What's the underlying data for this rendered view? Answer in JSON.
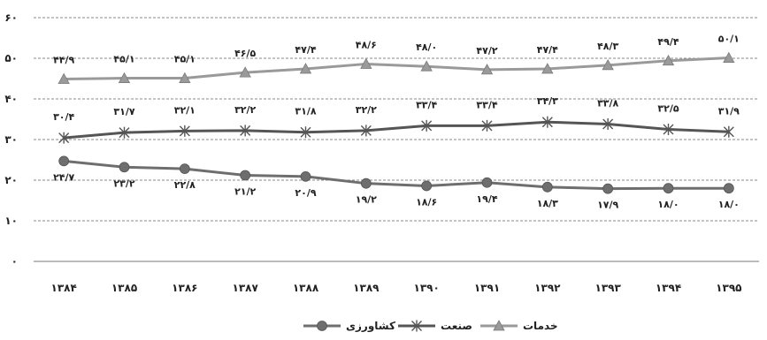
{
  "chart_data": {
    "type": "line",
    "categories": [
      "۱۳۸۴",
      "۱۳۸۵",
      "۱۳۸۶",
      "۱۳۸۷",
      "۱۳۸۸",
      "۱۳۸۹",
      "۱۳۹۰",
      "۱۳۹۱",
      "۱۳۹۲",
      "۱۳۹۳",
      "۱۳۹۴",
      "۱۳۹۵"
    ],
    "ylim": [
      0,
      60
    ],
    "yticks": [
      0,
      10,
      20,
      30,
      40,
      50,
      60
    ],
    "ytick_labels": [
      "۰",
      "۱۰",
      "۲۰",
      "۳۰",
      "۴۰",
      "۵۰",
      "۶۰"
    ],
    "grid": true,
    "legend_position": "bottom",
    "series": [
      {
        "name": "خدمات",
        "marker": "triangle",
        "color": "#9a9a9a",
        "values": [
          44.9,
          45.1,
          45.1,
          46.5,
          47.4,
          48.6,
          48.0,
          47.2,
          47.4,
          48.3,
          49.4,
          50.1
        ],
        "labels": [
          "۴۴/۹",
          "۴۵/۱",
          "۴۵/۱",
          "۴۶/۵",
          "۴۷/۴",
          "۴۸/۶",
          "۴۸/۰",
          "۴۷/۲",
          "۴۷/۴",
          "۴۸/۳",
          "۴۹/۴",
          "۵۰/۱"
        ]
      },
      {
        "name": "صنعت",
        "marker": "asterisk",
        "color": "#555555",
        "values": [
          30.4,
          31.7,
          32.1,
          32.2,
          31.8,
          32.2,
          33.4,
          33.4,
          34.3,
          33.8,
          32.5,
          31.9
        ],
        "labels": [
          "۳۰/۴",
          "۳۱/۷",
          "۳۲/۱",
          "۳۲/۲",
          "۳۱/۸",
          "۳۲/۲",
          "۳۳/۴",
          "۳۳/۴",
          "۳۴/۳",
          "۳۳/۸",
          "۳۲/۵",
          "۳۱/۹"
        ]
      },
      {
        "name": "کشاورزی",
        "marker": "circle",
        "color": "#6e6e6e",
        "values": [
          24.7,
          23.2,
          22.8,
          21.2,
          20.9,
          19.2,
          18.6,
          19.4,
          18.3,
          17.9,
          18.0,
          18.0
        ],
        "labels": [
          "۲۴/۷",
          "۲۳/۲",
          "۲۲/۸",
          "۲۱/۲",
          "۲۰/۹",
          "۱۹/۲",
          "۱۸/۶",
          "۱۹/۴",
          "۱۸/۳",
          "۱۷/۹",
          "۱۸/۰",
          "۱۸/۰"
        ]
      }
    ]
  }
}
